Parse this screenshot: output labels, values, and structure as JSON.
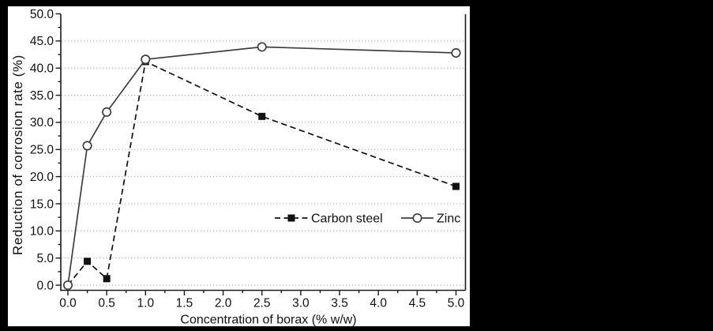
{
  "window": {
    "background_color": "#000000",
    "plot_background_color": "#ffffff"
  },
  "chart_data": {
    "type": "line",
    "title": "",
    "xlabel": "Concentration of borax (% w/w)",
    "ylabel": "Reduction of corrosion rate (%)",
    "x": [
      0.0,
      0.25,
      0.5,
      1.0,
      2.5,
      5.0
    ],
    "series": [
      {
        "name": "Carbon steel",
        "values": [
          0.0,
          4.4,
          1.2,
          41.2,
          31.1,
          18.2
        ],
        "line_style": "dashed",
        "marker": "filled-square",
        "color": "#111111"
      },
      {
        "name": "Zinc",
        "values": [
          0.0,
          25.7,
          31.9,
          41.6,
          43.9,
          42.8
        ],
        "line_style": "solid",
        "marker": "open-circle",
        "color": "#3f3f3f"
      }
    ],
    "xlim": [
      -0.1,
      5.12
    ],
    "ylim": [
      -0.95,
      50.0
    ],
    "x_ticks": {
      "labels": [
        "0.0",
        "0.5",
        "1.0",
        "1.5",
        "2.0",
        "2.5",
        "3.0",
        "3.5",
        "4.0",
        "4.5",
        "5.0"
      ],
      "values": [
        0.0,
        0.5,
        1.0,
        1.5,
        2.0,
        2.5,
        3.0,
        3.5,
        4.0,
        4.5,
        5.0
      ],
      "minor_between_majors": true
    },
    "y_ticks": {
      "labels": [
        "0.0",
        "5.0",
        "10.0",
        "15.0",
        "20.0",
        "25.0",
        "30.0",
        "35.0",
        "40.0",
        "45.0",
        "50.0"
      ],
      "values": [
        0,
        5,
        10,
        15,
        20,
        25,
        30,
        35,
        40,
        45,
        50
      ],
      "minor_between_majors": true
    },
    "grid": {
      "horizontal": true,
      "vertical": false,
      "style": "dotted",
      "color": "#a8a8a8",
      "max_gridline_value": 45
    },
    "legend": {
      "position": "inside-middle-right",
      "items": [
        "Carbon steel",
        "Zinc"
      ]
    },
    "axis_color": "#1a1a1a",
    "text_color": "#111111",
    "frame": {
      "left": true,
      "bottom": true,
      "right": true,
      "top": false
    }
  }
}
